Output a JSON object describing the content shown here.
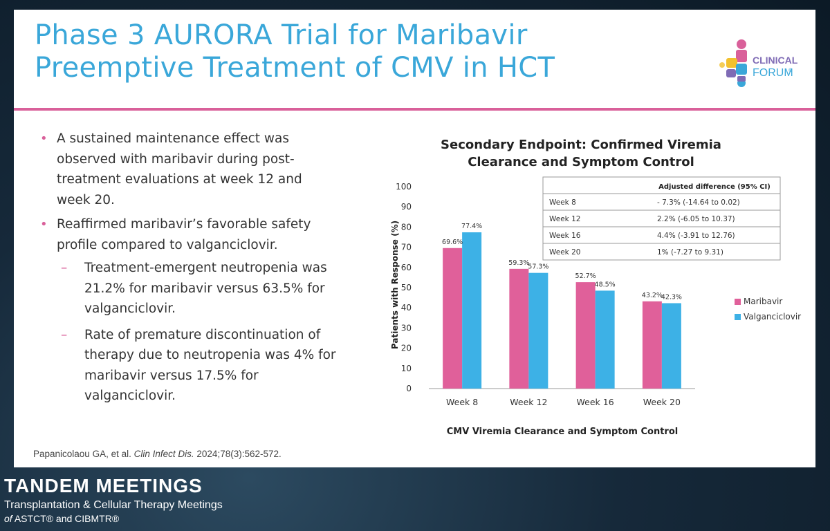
{
  "slide": {
    "title_line1": "Phase 3 AURORA Trial for Maribavir",
    "title_line2": "Preemptive Treatment of CMV in HCT",
    "logo": {
      "line1": "CLINICAL",
      "line2": "FORUM",
      "mark": "®"
    },
    "bullets": [
      {
        "text": "A sustained maintenance effect was observed with maribavir during post-treatment evaluations at week 12 and week 20."
      },
      {
        "text": "Reaffirmed maribavir’s favorable safety profile compared to valganciclovir."
      }
    ],
    "sub_bullets": [
      {
        "text": "Treatment-emergent neutropenia was 21.2% for maribavir versus 63.5% for valganciclovir."
      },
      {
        "text": "Rate of premature discontinuation of therapy due to neutropenia was 4% for maribavir versus 17.5% for valganciclovir."
      }
    ],
    "citation": {
      "authors": "Papanicolaou GA, et al.",
      "journal": "Clin Infect Dis.",
      "details": "2024;78(3):562-572."
    }
  },
  "chart_data": {
    "type": "bar",
    "title_line1": "Secondary Endpoint: Confirmed Viremia",
    "title_line2": "Clearance and Symptom Control",
    "categories": [
      "Week 8",
      "Week 12",
      "Week 16",
      "Week 20"
    ],
    "series": [
      {
        "name": "Maribavir",
        "color": "#e0609a",
        "values": [
          69.6,
          59.3,
          52.7,
          43.2
        ],
        "labels": [
          "69.6%",
          "59.3%",
          "52.7%",
          "43.2%"
        ]
      },
      {
        "name": "Valganciclovir",
        "color": "#3db1e6",
        "values": [
          77.4,
          57.3,
          48.5,
          42.3
        ],
        "labels": [
          "77.4%",
          "57.3%",
          "48.5%",
          "42.3%"
        ]
      }
    ],
    "ylabel": "Patients with Response (%)",
    "xlabel": "CMV Viremia Clearance and Symptom Control",
    "ylim": [
      0,
      100
    ],
    "yticks": [
      0,
      10,
      20,
      30,
      40,
      50,
      60,
      70,
      80,
      90,
      100
    ],
    "legend_position": "right",
    "table": {
      "header": "Adjusted difference (95% CI)",
      "rows": [
        {
          "week": "Week 8",
          "value": "- 7.3% (-14.64 to 0.02)"
        },
        {
          "week": "Week 12",
          "value": "2.2% (-6.05 to 10.37)"
        },
        {
          "week": "Week 16",
          "value": "4.4% (-3.91 to 12.76)"
        },
        {
          "week": "Week 20",
          "value": "1% (-7.27 to 9.31)"
        }
      ]
    }
  },
  "footer": {
    "title": "TANDEM MEETINGS",
    "subtitle": "Transplantation & Cellular Therapy Meetings",
    "org_prefix": "of",
    "org": "ASTCT® and CIBMTR®"
  }
}
